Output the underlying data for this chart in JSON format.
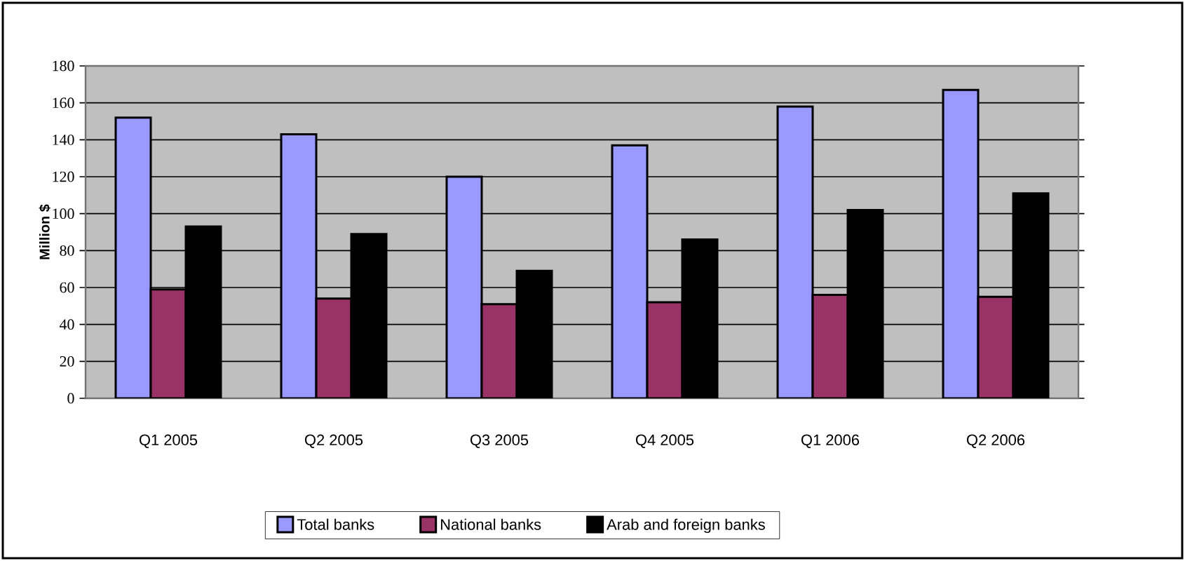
{
  "chart_data": {
    "type": "bar",
    "ylabel": "Million $",
    "categories": [
      "Q1 2005",
      "Q2 2005",
      "Q3 2005",
      "Q4 2005",
      "Q1 2006",
      "Q2 2006"
    ],
    "series": [
      {
        "name": "Total banks",
        "color": "#9999ff",
        "values": [
          152,
          143,
          120,
          137,
          158,
          167
        ]
      },
      {
        "name": "National banks",
        "color": "#993366",
        "values": [
          59,
          54,
          51,
          52,
          56,
          55
        ]
      },
      {
        "name": "Arab and foreign banks",
        "color": "#000000",
        "values": [
          93,
          89,
          69,
          86,
          102,
          111
        ]
      }
    ],
    "ylim": [
      0,
      180
    ],
    "yticks": [
      0,
      20,
      40,
      60,
      80,
      100,
      120,
      140,
      160,
      180
    ],
    "grid": "y",
    "legend": "bottom"
  }
}
